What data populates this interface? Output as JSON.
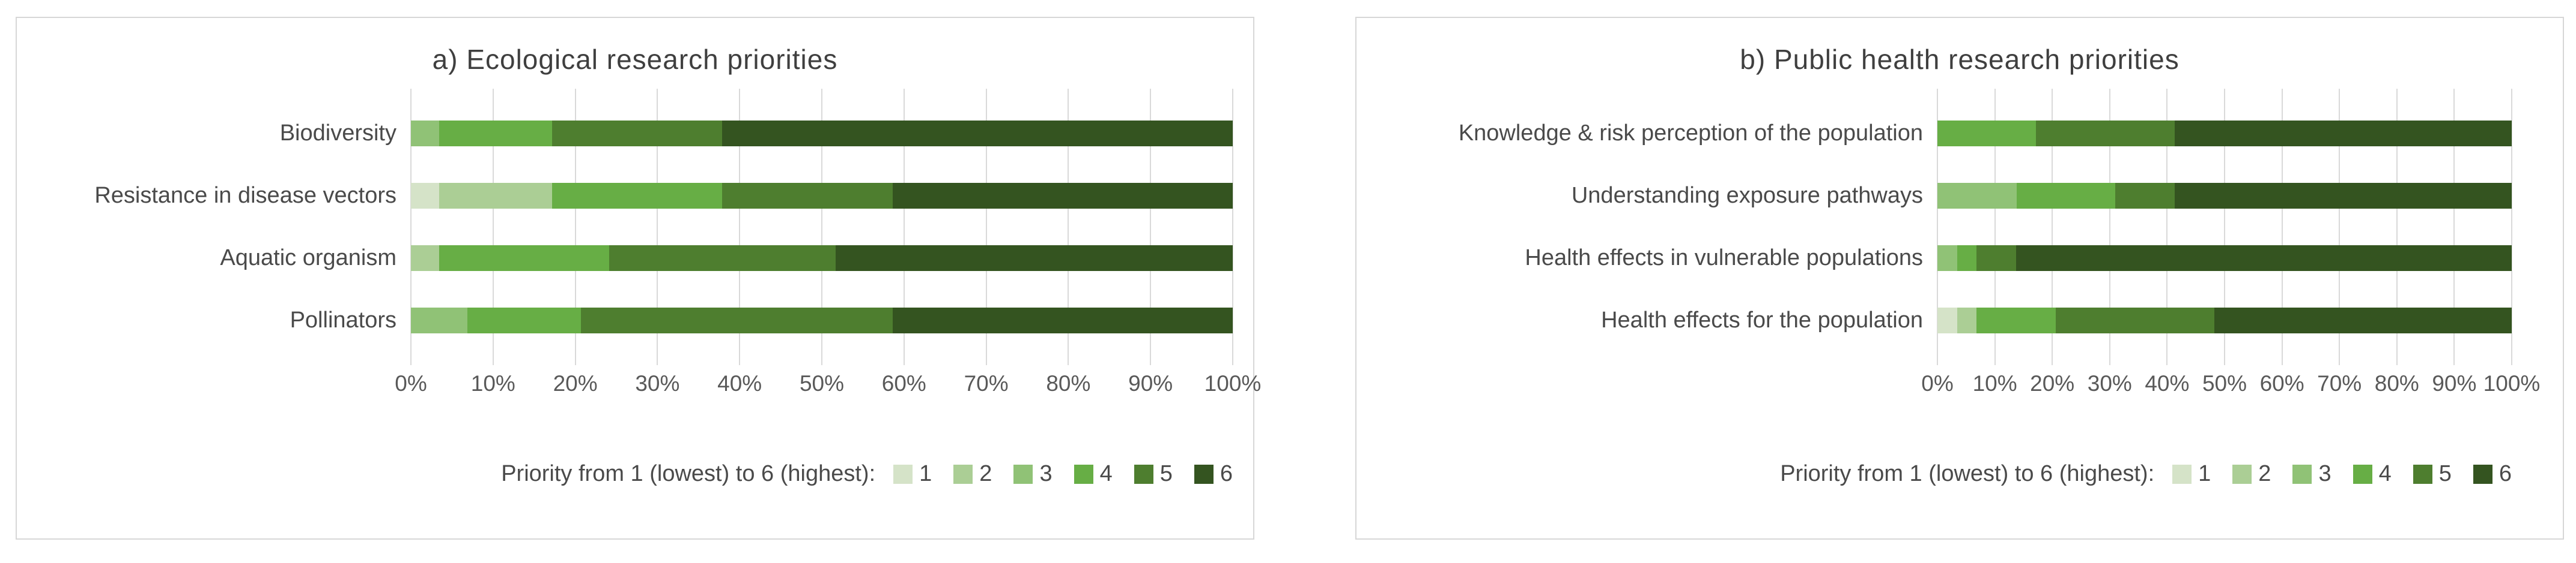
{
  "page": {
    "background": "#ffffff",
    "panel_border_color": "#d7d7d7",
    "gridline_color": "#d9d9d9"
  },
  "palette": {
    "1": "#d5e3c8",
    "2": "#abce95",
    "3": "#90c276",
    "4": "#67ae45",
    "5": "#4e7e2f",
    "6": "#345420"
  },
  "chart_data": [
    {
      "type": "bar",
      "orientation": "horizontal",
      "stacked": true,
      "grid": true,
      "title": "a) Ecological research priorities",
      "categories": [
        "Biodiversity",
        "Resistance in disease vectors",
        "Aquatic organism",
        "Pollinators"
      ],
      "series": [
        {
          "name": "1",
          "color": "#d5e3c8",
          "values": [
            0,
            3.4,
            0,
            0
          ]
        },
        {
          "name": "2",
          "color": "#abce95",
          "values": [
            0,
            13.8,
            3.4,
            0
          ]
        },
        {
          "name": "3",
          "color": "#90c276",
          "values": [
            3.4,
            0,
            0,
            6.9
          ]
        },
        {
          "name": "4",
          "color": "#67ae45",
          "values": [
            13.8,
            20.7,
            20.7,
            13.8
          ]
        },
        {
          "name": "5",
          "color": "#4e7e2f",
          "values": [
            20.7,
            20.7,
            27.6,
            37.9
          ]
        },
        {
          "name": "6",
          "color": "#345420",
          "values": [
            62.1,
            41.4,
            48.3,
            41.4
          ]
        }
      ],
      "xlim": [
        0,
        100
      ],
      "x_ticks": [
        "0%",
        "10%",
        "20%",
        "30%",
        "40%",
        "50%",
        "60%",
        "70%",
        "80%",
        "90%",
        "100%"
      ],
      "legend_position": "bottom",
      "legend_label": "Priority from 1 (lowest) to 6 (highest):",
      "legend_entries": [
        "1",
        "2",
        "3",
        "4",
        "5",
        "6"
      ]
    },
    {
      "type": "bar",
      "orientation": "horizontal",
      "stacked": true,
      "grid": true,
      "title": "b) Public health research priorities",
      "categories": [
        "Knowledge & risk perception of the population",
        "Understanding exposure pathways",
        "Health effects in vulnerable populations",
        "Health effects for the population"
      ],
      "series": [
        {
          "name": "1",
          "color": "#d5e3c8",
          "values": [
            0,
            0,
            0,
            3.4
          ]
        },
        {
          "name": "2",
          "color": "#abce95",
          "values": [
            0,
            0,
            0,
            3.4
          ]
        },
        {
          "name": "3",
          "color": "#90c276",
          "values": [
            0,
            13.8,
            3.4,
            0
          ]
        },
        {
          "name": "4",
          "color": "#67ae45",
          "values": [
            17.2,
            17.2,
            3.4,
            13.8
          ]
        },
        {
          "name": "5",
          "color": "#4e7e2f",
          "values": [
            24.1,
            10.3,
            6.9,
            27.6
          ]
        },
        {
          "name": "6",
          "color": "#345420",
          "values": [
            58.6,
            58.6,
            86.2,
            51.7
          ]
        }
      ],
      "xlim": [
        0,
        100
      ],
      "x_ticks": [
        "0%",
        "10%",
        "20%",
        "30%",
        "40%",
        "50%",
        "60%",
        "70%",
        "80%",
        "90%",
        "100%"
      ],
      "legend_position": "bottom",
      "legend_label": "Priority from 1 (lowest) to 6 (highest):",
      "legend_entries": [
        "1",
        "2",
        "3",
        "4",
        "5",
        "6"
      ]
    }
  ]
}
